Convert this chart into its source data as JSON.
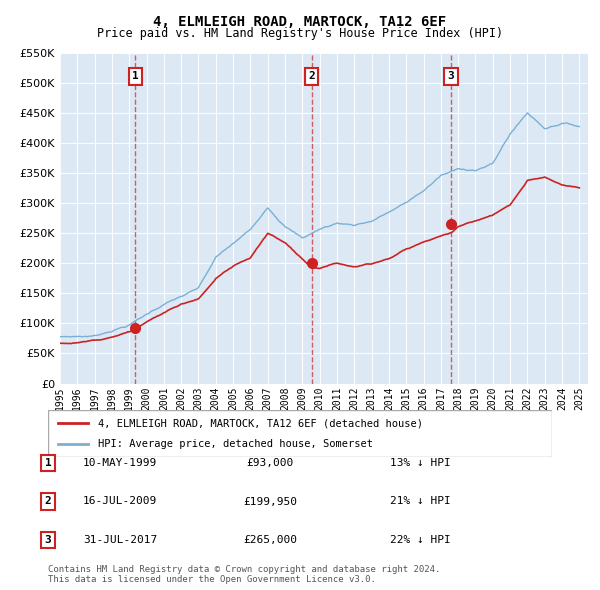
{
  "title": "4, ELMLEIGH ROAD, MARTOCK, TA12 6EF",
  "subtitle": "Price paid vs. HM Land Registry's House Price Index (HPI)",
  "background_color": "#dce9f5",
  "plot_bg_color": "#dce9f5",
  "hpi_color": "#7ab0d4",
  "price_color": "#cc2222",
  "ylim": [
    0,
    550000
  ],
  "yticks": [
    0,
    50000,
    100000,
    150000,
    200000,
    250000,
    300000,
    350000,
    400000,
    450000,
    500000,
    550000
  ],
  "xmin": 1995.0,
  "xmax": 2025.5,
  "sale_dates": [
    1999.36,
    2009.54,
    2017.58
  ],
  "sale_prices": [
    93000,
    199950,
    265000
  ],
  "sale_labels": [
    "1",
    "2",
    "3"
  ],
  "legend_price_label": "4, ELMLEIGH ROAD, MARTOCK, TA12 6EF (detached house)",
  "legend_hpi_label": "HPI: Average price, detached house, Somerset",
  "table_entries": [
    {
      "num": "1",
      "date": "10-MAY-1999",
      "price": "£93,000",
      "hpi": "13% ↓ HPI"
    },
    {
      "num": "2",
      "date": "16-JUL-2009",
      "price": "£199,950",
      "hpi": "21% ↓ HPI"
    },
    {
      "num": "3",
      "date": "31-JUL-2017",
      "price": "£265,000",
      "hpi": "22% ↓ HPI"
    }
  ],
  "footer": "Contains HM Land Registry data © Crown copyright and database right 2024.\nThis data is licensed under the Open Government Licence v3.0."
}
